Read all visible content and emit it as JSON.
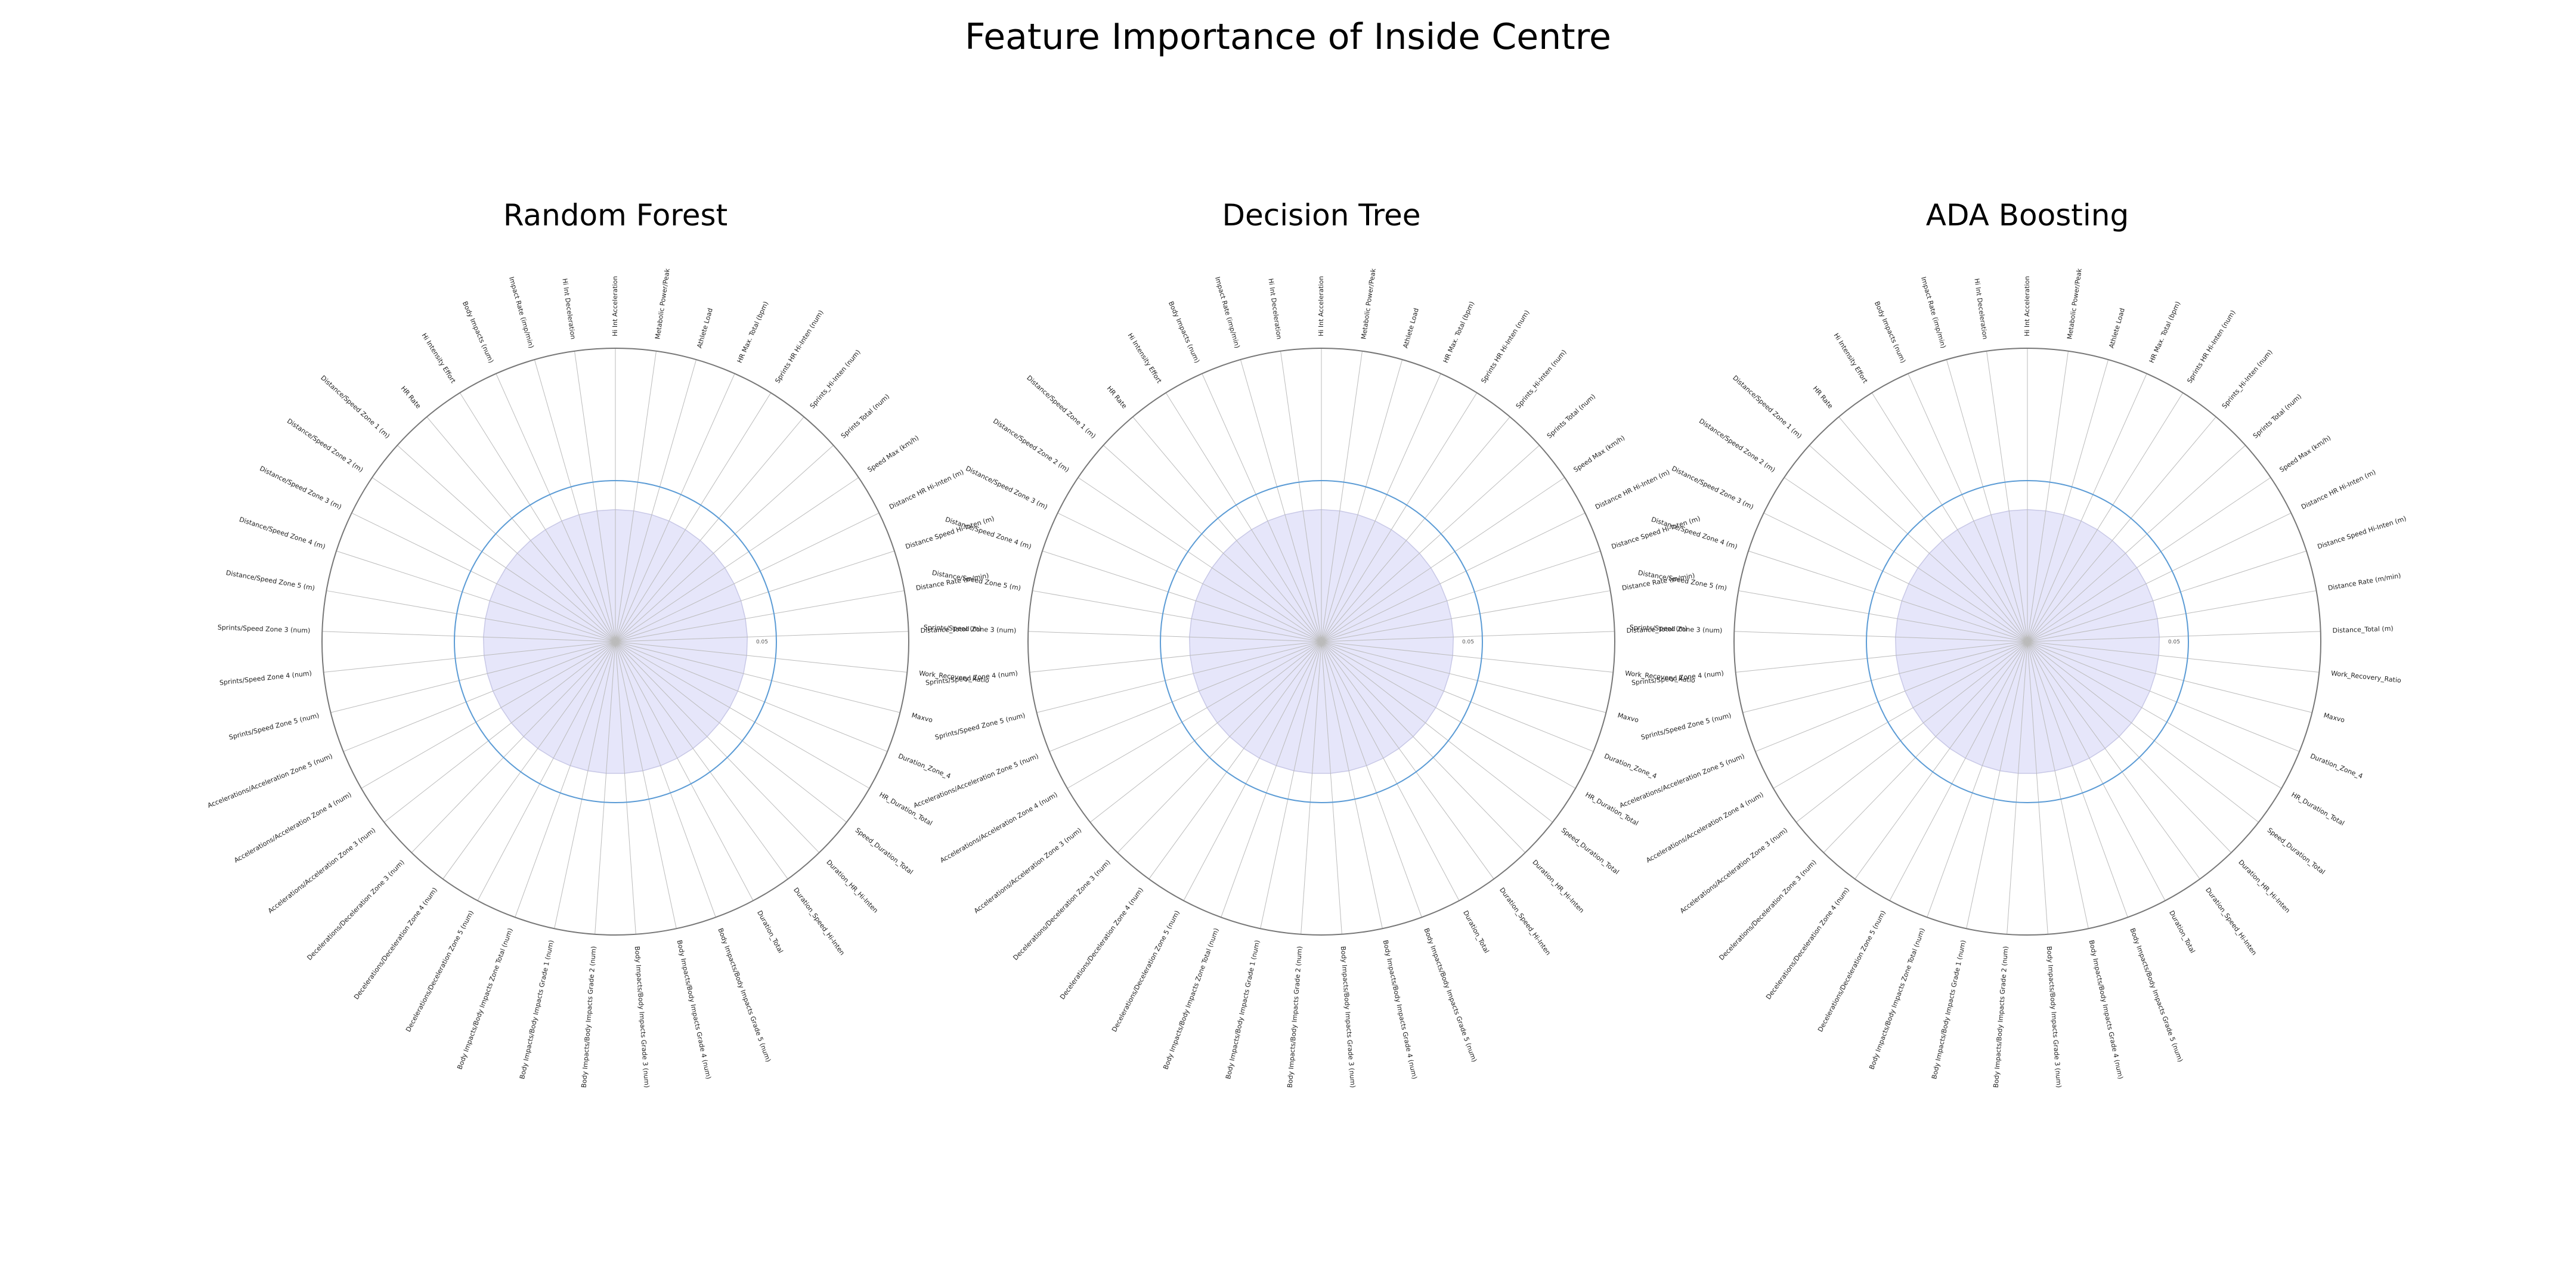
{
  "title": "Feature Importance of Inside Centre",
  "chart_data": [
    {
      "type": "radar",
      "title": "Random Forest",
      "r_ticks": [
        "0.05"
      ],
      "grid": true,
      "colors": {
        "fill": "#e6e6fa",
        "guide_circle": "#5b9bd5",
        "grid": "#bbbbbb",
        "outer": "#777777"
      },
      "categories": [
        "Hi Int Acceleration",
        "Metabolic Power/Peak",
        "Athlete Load",
        "HR Max. Total (bpm)",
        "Sprints HR Hi-Inten (num)",
        "Sprints_Hi-Inten (num)",
        "Sprints Total (num)",
        "Speed Max (km/h)",
        "Distance HR Hi-Inten (m)",
        "Distance Speed Hi-Inten (m)",
        "Distance Rate (m/min)",
        "Distance_Total (m)",
        "Work_Recovery_Ratio",
        "Maxvo",
        "Duration_Zone_4",
        "HR_Duration_Total",
        "Speed_Duration_Total",
        "Duration_HR_Hi-Inten",
        "Duration_Speed_Hi-Inten",
        "Duration_Total",
        "Body Impacts/Body Impacts Grade 5 (num)",
        "Body Impacts/Body Impacts Grade 4 (num)",
        "Body Impacts/Body Impacts Grade 3 (num)",
        "Body Impacts/Body Impacts Grade 2 (num)",
        "Body Impacts/Body Impacts Grade 1 (num)",
        "Body Impacts/Body Impacts Zone Total (num)",
        "Decelerations/Deceleration Zone 5 (num)",
        "Decelerations/Deceleration Zone 4 (num)",
        "Decelerations/Deceleration Zone 3 (num)",
        "Accelerations/Acceleration Zone 3 (num)",
        "Accelerations/Acceleration Zone 4 (num)",
        "Accelerations/Acceleration Zone 5 (num)",
        "Sprints/Speed Zone 5 (num)",
        "Sprints/Speed Zone 4 (num)",
        "Sprints/Speed Zone 3 (num)",
        "Distance/Speed Zone 5 (m)",
        "Distance/Speed Zone 4 (m)",
        "Distance/Speed Zone 3 (m)",
        "Distance/Speed Zone 2 (m)",
        "Distance/Speed Zone 1 (m)",
        "HR Rate",
        "Hi Intensity Effort",
        "Body Impacts (num)",
        "Impact Rate (imp/min)",
        "Hi Int Deceleration"
      ],
      "values": [
        0.05,
        0.05,
        0.05,
        0.05,
        0.05,
        0.05,
        0.05,
        0.05,
        0.05,
        0.05,
        0.05,
        0.05,
        0.05,
        0.05,
        0.05,
        0.05,
        0.05,
        0.05,
        0.05,
        0.05,
        0.05,
        0.05,
        0.05,
        0.05,
        0.05,
        0.05,
        0.05,
        0.05,
        0.05,
        0.05,
        0.05,
        0.05,
        0.05,
        0.05,
        0.05,
        0.05,
        0.05,
        0.05,
        0.05,
        0.05,
        0.05,
        0.05,
        0.05,
        0.05,
        0.05
      ],
      "rmax": 0.1
    },
    {
      "type": "radar",
      "title": "Decision Tree",
      "r_ticks": [
        "0.05"
      ],
      "grid": true,
      "colors": {
        "fill": "#e6e6fa",
        "guide_circle": "#5b9bd5",
        "grid": "#bbbbbb",
        "outer": "#777777"
      },
      "categories": [
        "Hi Int Acceleration",
        "Metabolic Power/Peak",
        "Athlete Load",
        "HR Max. Total (bpm)",
        "Sprints HR Hi-Inten (num)",
        "Sprints_Hi-Inten (num)",
        "Sprints Total (num)",
        "Speed Max (km/h)",
        "Distance HR Hi-Inten (m)",
        "Distance Speed Hi-Inten (m)",
        "Distance Rate (m/min)",
        "Distance_Total (m)",
        "Work_Recovery_Ratio",
        "Maxvo",
        "Duration_Zone_4",
        "HR_Duration_Total",
        "Speed_Duration_Total",
        "Duration_HR_Hi-Inten",
        "Duration_Speed_Hi-Inten",
        "Duration_Total",
        "Body Impacts/Body Impacts Grade 5 (num)",
        "Body Impacts/Body Impacts Grade 4 (num)",
        "Body Impacts/Body Impacts Grade 3 (num)",
        "Body Impacts/Body Impacts Grade 2 (num)",
        "Body Impacts/Body Impacts Grade 1 (num)",
        "Body Impacts/Body Impacts Zone Total (num)",
        "Decelerations/Deceleration Zone 5 (num)",
        "Decelerations/Deceleration Zone 4 (num)",
        "Decelerations/Deceleration Zone 3 (num)",
        "Accelerations/Acceleration Zone 3 (num)",
        "Accelerations/Acceleration Zone 4 (num)",
        "Accelerations/Acceleration Zone 5 (num)",
        "Sprints/Speed Zone 5 (num)",
        "Sprints/Speed Zone 4 (num)",
        "Sprints/Speed Zone 3 (num)",
        "Distance/Speed Zone 5 (m)",
        "Distance/Speed Zone 4 (m)",
        "Distance/Speed Zone 3 (m)",
        "Distance/Speed Zone 2 (m)",
        "Distance/Speed Zone 1 (m)",
        "HR Rate",
        "Hi Intensity Effort",
        "Body Impacts (num)",
        "Impact Rate (imp/min)",
        "Hi Int Deceleration"
      ],
      "values": [
        0.05,
        0.05,
        0.05,
        0.05,
        0.05,
        0.05,
        0.05,
        0.05,
        0.05,
        0.05,
        0.05,
        0.05,
        0.05,
        0.05,
        0.05,
        0.05,
        0.05,
        0.05,
        0.05,
        0.05,
        0.05,
        0.05,
        0.05,
        0.05,
        0.05,
        0.05,
        0.05,
        0.05,
        0.05,
        0.05,
        0.05,
        0.05,
        0.05,
        0.05,
        0.05,
        0.05,
        0.05,
        0.05,
        0.05,
        0.05,
        0.05,
        0.05,
        0.05,
        0.05,
        0.05
      ],
      "rmax": 0.1
    },
    {
      "type": "radar",
      "title": "ADA Boosting",
      "r_ticks": [
        "0.05"
      ],
      "grid": true,
      "colors": {
        "fill": "#e6e6fa",
        "guide_circle": "#5b9bd5",
        "grid": "#bbbbbb",
        "outer": "#777777"
      },
      "categories": [
        "Hi Int Acceleration",
        "Metabolic Power/Peak",
        "Athlete Load",
        "HR Max. Total (bpm)",
        "Sprints HR Hi-Inten (num)",
        "Sprints_Hi-Inten (num)",
        "Sprints Total (num)",
        "Speed Max (km/h)",
        "Distance HR Hi-Inten (m)",
        "Distance Speed Hi-Inten (m)",
        "Distance Rate (m/min)",
        "Distance_Total (m)",
        "Work_Recovery_Ratio",
        "Maxvo",
        "Duration_Zone_4",
        "HR_Duration_Total",
        "Speed_Duration_Total",
        "Duration_HR_Hi-Inten",
        "Duration_Speed_Hi-Inten",
        "Duration_Total",
        "Body Impacts/Body Impacts Grade 5 (num)",
        "Body Impacts/Body Impacts Grade 4 (num)",
        "Body Impacts/Body Impacts Grade 3 (num)",
        "Body Impacts/Body Impacts Grade 2 (num)",
        "Body Impacts/Body Impacts Grade 1 (num)",
        "Body Impacts/Body Impacts Zone Total (num)",
        "Decelerations/Deceleration Zone 5 (num)",
        "Decelerations/Deceleration Zone 4 (num)",
        "Decelerations/Deceleration Zone 3 (num)",
        "Accelerations/Acceleration Zone 3 (num)",
        "Accelerations/Acceleration Zone 4 (num)",
        "Accelerations/Acceleration Zone 5 (num)",
        "Sprints/Speed Zone 5 (num)",
        "Sprints/Speed Zone 4 (num)",
        "Sprints/Speed Zone 3 (num)",
        "Distance/Speed Zone 5 (m)",
        "Distance/Speed Zone 4 (m)",
        "Distance/Speed Zone 3 (m)",
        "Distance/Speed Zone 2 (m)",
        "Distance/Speed Zone 1 (m)",
        "HR Rate",
        "Hi Intensity Effort",
        "Body Impacts (num)",
        "Impact Rate (imp/min)",
        "Hi Int Deceleration"
      ],
      "values": [
        0.05,
        0.05,
        0.05,
        0.05,
        0.05,
        0.05,
        0.05,
        0.05,
        0.05,
        0.05,
        0.05,
        0.05,
        0.05,
        0.05,
        0.05,
        0.05,
        0.05,
        0.05,
        0.05,
        0.05,
        0.05,
        0.05,
        0.05,
        0.05,
        0.05,
        0.05,
        0.05,
        0.05,
        0.05,
        0.05,
        0.05,
        0.05,
        0.05,
        0.05,
        0.05,
        0.05,
        0.05,
        0.05,
        0.05,
        0.05,
        0.05,
        0.05,
        0.05,
        0.05,
        0.05
      ],
      "rmax": 0.1
    }
  ]
}
